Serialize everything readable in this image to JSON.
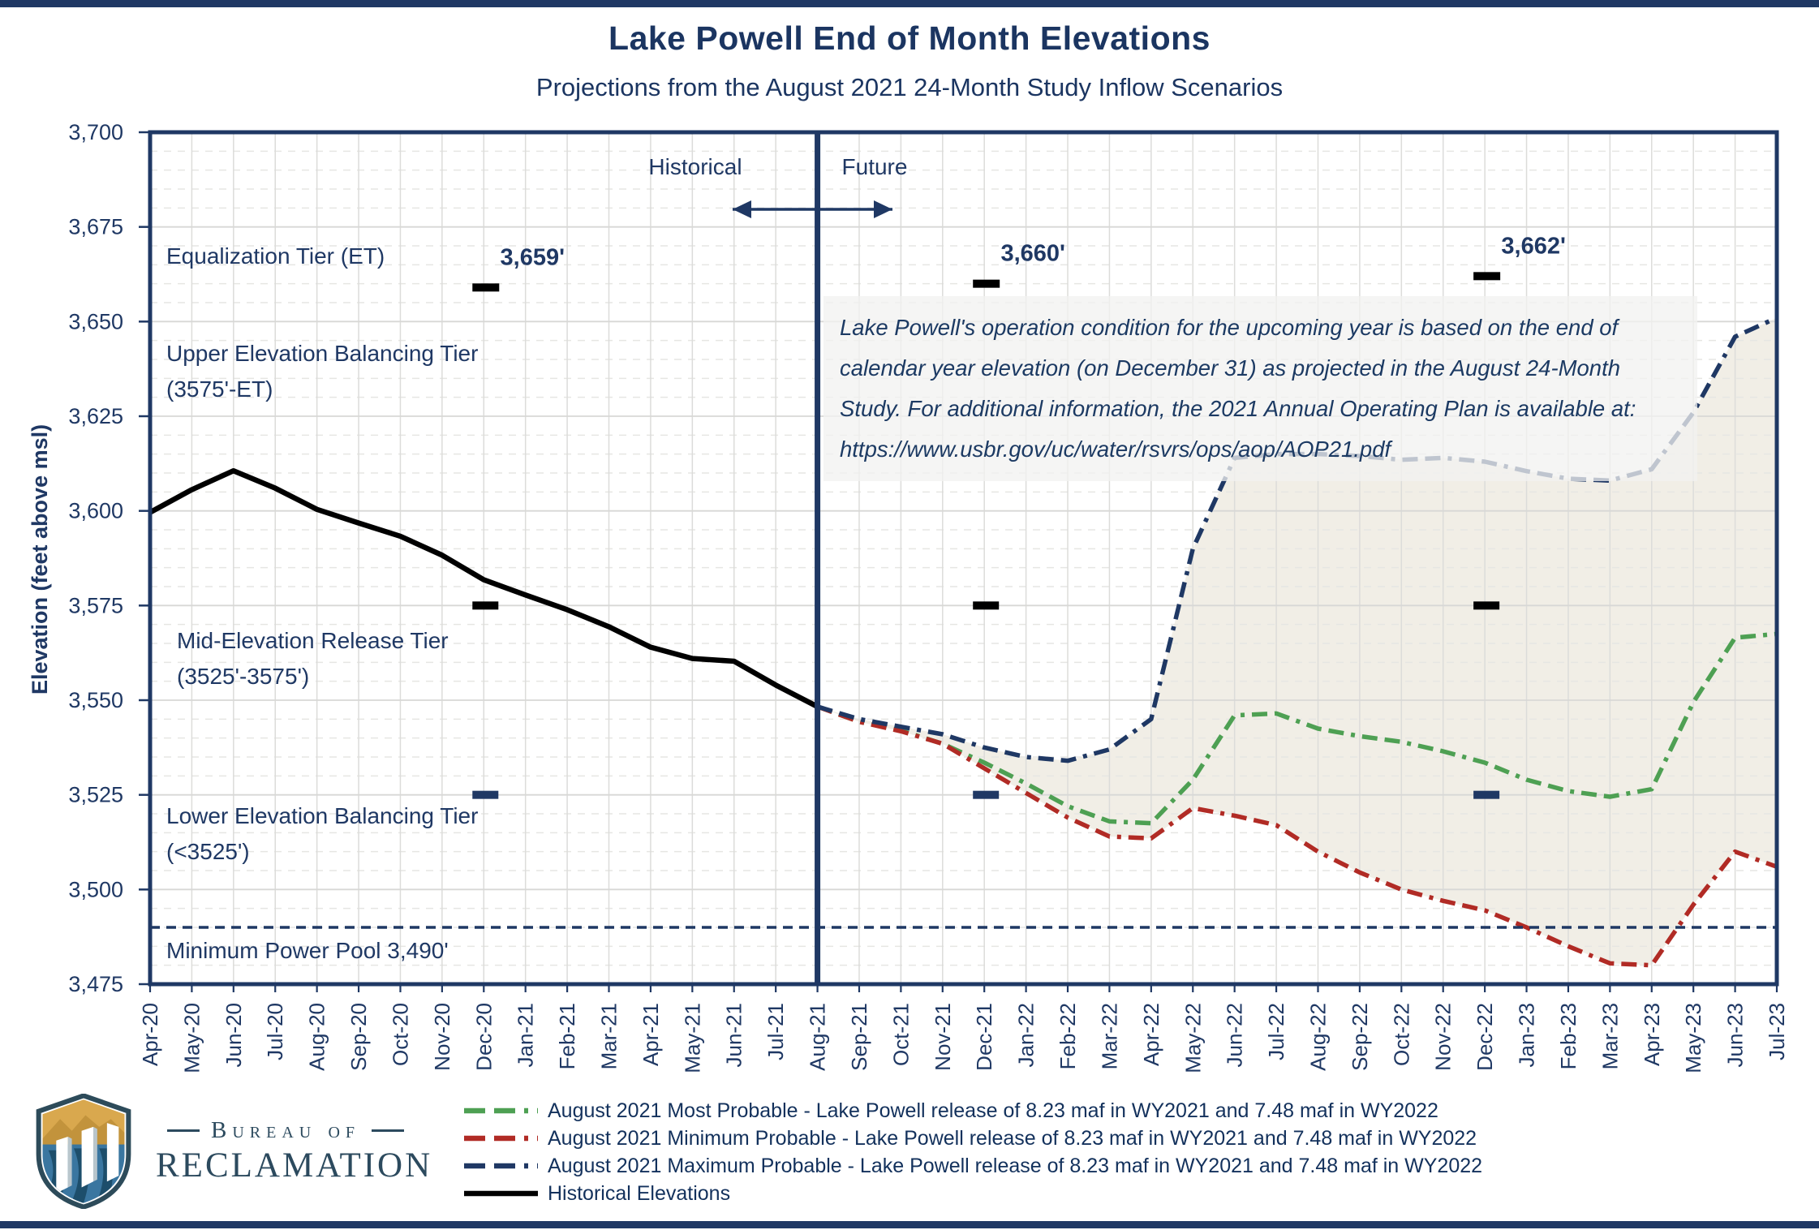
{
  "page": {
    "title": "Lake Powell End of Month Elevations",
    "subtitle": "Projections from the August 2021 24-Month Study Inflow Scenarios"
  },
  "colors": {
    "navy": "#1f3864",
    "green": "#4ea053",
    "red": "#b12b25",
    "black": "#000000",
    "band": "#f0ede5",
    "grid_major": "#d8d8d6",
    "grid_minor": "#e6e6e3"
  },
  "tiers": [
    {
      "name": "Equalization Tier (ET)",
      "range": ""
    },
    {
      "name": "Upper Elevation Balancing Tier",
      "range": "(3575'-ET)"
    },
    {
      "name": "Mid-Elevation Release Tier",
      "range": "(3525'-3575')"
    },
    {
      "name": "Lower Elevation Balancing Tier",
      "range": "(<3525')"
    }
  ],
  "min_power_pool_label": "Minimum Power Pool  3,490'",
  "divider_labels": {
    "left": "Historical",
    "right": "Future"
  },
  "annotation": {
    "lines": [
      "Lake Powell's operation condition for the upcoming year is based on the end of",
      "calendar year elevation (on December 31) as projected in the August 24-Month",
      "Study. For additional information, the 2021 Annual Operating Plan is available at:",
      "https://www.usbr.gov/uc/water/rsvrs/ops/aop/AOP21.pdf"
    ]
  },
  "legend": {
    "items": [
      {
        "label": "August 2021 Most Probable - Lake Powell release of 8.23 maf in WY2021 and 7.48 maf in WY2022",
        "color": "#4ea053",
        "style": "dashed"
      },
      {
        "label": "August 2021 Minimum Probable - Lake Powell release of 8.23 maf in WY2021 and 7.48 maf in WY2022",
        "color": "#b12b25",
        "style": "dashed"
      },
      {
        "label": "August 2021 Maximum Probable - Lake Powell release of 8.23 maf in WY2021 and 7.48 maf in WY2022",
        "color": "#1f3864",
        "style": "dashed"
      },
      {
        "label": "Historical Elevations",
        "color": "#000000",
        "style": "solid"
      }
    ]
  },
  "logo": {
    "line1": "Bureau of",
    "line2": "RECLAMATION"
  },
  "chart_data": {
    "type": "line",
    "title": "Lake Powell End of Month Elevations",
    "xlabel": "",
    "ylabel": "Elevation (feet above msl)",
    "ylim": [
      3475,
      3700
    ],
    "y_major_step": 25,
    "y_minor_step": 5,
    "grid": true,
    "legend_position": "bottom",
    "x_categories": [
      "Apr-20",
      "May-20",
      "Jun-20",
      "Jul-20",
      "Aug-20",
      "Sep-20",
      "Oct-20",
      "Nov-20",
      "Dec-20",
      "Jan-21",
      "Feb-21",
      "Mar-21",
      "Apr-21",
      "May-21",
      "Jun-21",
      "Jul-21",
      "Aug-21",
      "Sep-21",
      "Oct-21",
      "Nov-21",
      "Dec-21",
      "Jan-22",
      "Feb-22",
      "Mar-22",
      "Apr-22",
      "May-22",
      "Jun-22",
      "Jul-22",
      "Aug-22",
      "Sep-22",
      "Oct-22",
      "Nov-22",
      "Dec-22",
      "Jan-23",
      "Feb-23",
      "Mar-23",
      "Apr-23",
      "May-23",
      "Jun-23",
      "Jul-23"
    ],
    "divider": {
      "x_category": "Aug-21"
    },
    "series": [
      {
        "name": "Historical Elevations",
        "color": "#000000",
        "style": "solid",
        "start_index": 0,
        "values": [
          3599.6,
          3605.6,
          3610.6,
          3606.0,
          3600.4,
          3596.8,
          3593.3,
          3588.3,
          3581.8,
          3577.8,
          3573.9,
          3569.4,
          3564.0,
          3561.0,
          3560.3,
          3554.0,
          3548.3
        ]
      },
      {
        "name": "August 2021 Most Probable",
        "color": "#4ea053",
        "style": "dashed",
        "start_index": 16,
        "values": [
          3548.3,
          3544.3,
          3542.0,
          3538.5,
          3533.5,
          3528.0,
          3522.0,
          3518.0,
          3517.5,
          3529.0,
          3546.0,
          3546.5,
          3542.5,
          3540.5,
          3539.0,
          3536.5,
          3533.5,
          3529.0,
          3526.0,
          3524.5,
          3526.5,
          3549.5,
          3566.5,
          3567.5
        ]
      },
      {
        "name": "August 2021 Minimum Probable",
        "color": "#b12b25",
        "style": "dashed",
        "start_index": 16,
        "values": [
          3548.3,
          3544.3,
          3541.8,
          3538.5,
          3532.0,
          3525.5,
          3519.0,
          3514.0,
          3513.5,
          3521.5,
          3519.5,
          3517.0,
          3510.0,
          3504.5,
          3500.0,
          3497.0,
          3494.5,
          3490.0,
          3485.0,
          3480.5,
          3480.0,
          3496.0,
          3510.0,
          3506.0
        ]
      },
      {
        "name": "August 2021 Maximum Probable",
        "color": "#1f3864",
        "style": "dashed",
        "start_index": 16,
        "values": [
          3548.3,
          3545.0,
          3543.0,
          3541.0,
          3537.5,
          3535.0,
          3534.0,
          3537.0,
          3545.0,
          3590.0,
          3614.0,
          3615.0,
          3615.0,
          3614.5,
          3613.5,
          3614.0,
          3613.0,
          3610.5,
          3608.5,
          3608.0,
          3611.0,
          3626.0,
          3646.0,
          3651.0
        ]
      }
    ],
    "band": {
      "upper_series": "August 2021 Maximum Probable",
      "lower_series": "August 2021 Minimum Probable",
      "color": "#f0ede5"
    },
    "reference_line": {
      "value": 3490,
      "label": "Minimum Power Pool  3,490'",
      "color": "#1f3864"
    },
    "et_markers": [
      {
        "x": "Dec-20",
        "value": 3659,
        "label": "3,659'"
      },
      {
        "x": "Dec-21",
        "value": 3660,
        "label": "3,660'"
      },
      {
        "x": "Dec-22",
        "value": 3662,
        "label": "3,662'"
      }
    ],
    "tier_boundary_markers": [
      {
        "value": 3575,
        "color": "#000000",
        "x": [
          "Dec-20",
          "Dec-21",
          "Dec-22"
        ]
      },
      {
        "value": 3525,
        "color": "#1f3864",
        "x": [
          "Dec-20",
          "Dec-21",
          "Dec-22"
        ]
      }
    ]
  }
}
